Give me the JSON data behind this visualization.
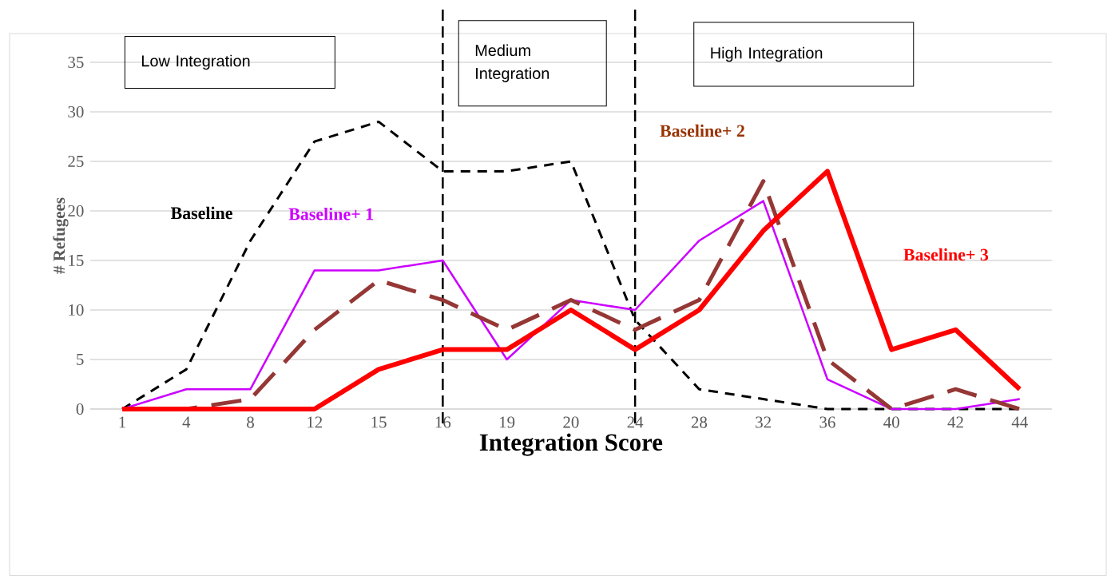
{
  "chart_data": {
    "type": "line",
    "xlabel": "Integration Score",
    "ylabel": "# Refugees",
    "categories": [
      "1",
      "4",
      "8",
      "12",
      "15",
      "16",
      "19",
      "20",
      "24",
      "28",
      "32",
      "36",
      "40",
      "42",
      "44"
    ],
    "series": [
      {
        "name": "Baseline",
        "color": "#000000",
        "line_style": "dashed",
        "values": [
          0,
          4,
          17,
          27,
          29,
          24,
          24,
          25,
          9,
          2,
          1,
          0,
          0,
          0,
          0
        ]
      },
      {
        "name": "Baseline+ 1",
        "color": "#cc00ff",
        "line_style": "solid",
        "values": [
          0,
          2,
          2,
          14,
          14,
          15,
          5,
          11,
          10,
          17,
          21,
          3,
          0,
          0,
          1
        ]
      },
      {
        "name": "Baseline+ 2",
        "color": "#953735",
        "line_style": "dashed",
        "values": [
          0,
          0,
          1,
          8,
          13,
          11,
          8,
          11,
          8,
          11,
          23,
          5,
          0,
          2,
          0
        ]
      },
      {
        "name": "Baseline+ 3",
        "color": "#ff0000",
        "line_style": "solid",
        "values": [
          0,
          0,
          0,
          0,
          4,
          6,
          6,
          10,
          6,
          10,
          18,
          24,
          6,
          8,
          2
        ]
      }
    ],
    "ylim": [
      0,
      35
    ],
    "yticks": [
      0,
      5,
      10,
      15,
      20,
      25,
      30,
      35
    ],
    "grid": "y",
    "marker": "none",
    "ref_lines": [
      {
        "axis": "x",
        "value": "16",
        "color": "#000000",
        "line_style": "dashed"
      },
      {
        "axis": "x",
        "value": "24",
        "color": "#000000",
        "line_style": "dashed"
      }
    ],
    "annotations": [
      "Low Integration",
      "Medium Integration",
      "High Integration"
    ]
  }
}
